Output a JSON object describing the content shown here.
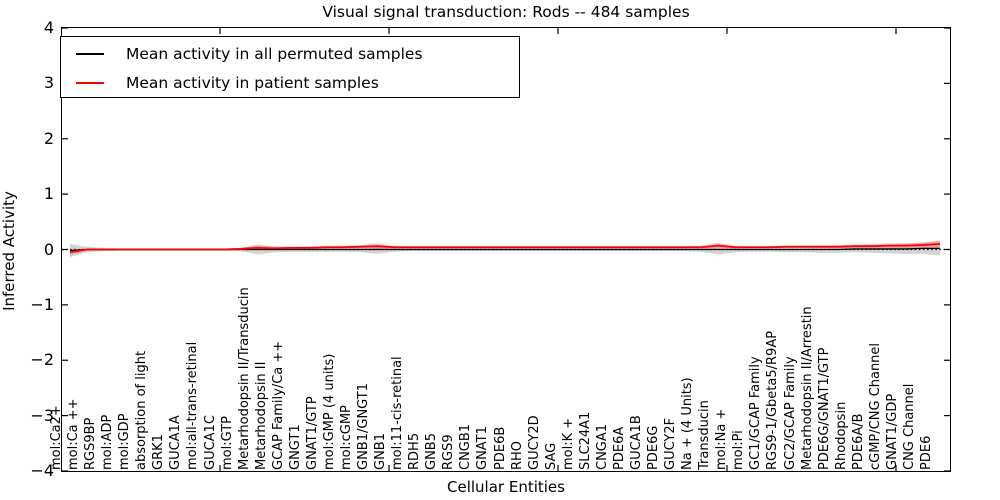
{
  "title": "Visual signal transduction: Rods -- 484 samples",
  "legend": {
    "items": [
      {
        "label": "Mean activity in all permuted samples",
        "color": "#000000"
      },
      {
        "label": "Mean activity in patient samples",
        "color": "#ff0000"
      }
    ]
  },
  "chart_data": {
    "type": "line",
    "title": "Visual signal transduction: Rods -- 484 samples",
    "xlabel": "Cellular Entities",
    "ylabel": "Inferred Activity",
    "ylim": [
      -4,
      4
    ],
    "yticks": [
      4,
      3,
      2,
      1,
      0,
      -1,
      -2,
      -3,
      -4
    ],
    "grid": false,
    "legend_position": "upper left",
    "zero_line": {
      "style": "dotted",
      "color": "#000000",
      "y": 0
    },
    "categories": [
      "mol:Ca2+",
      "mol:Ca ++",
      "RGS9BP",
      "mol:ADP",
      "mol:GDP",
      "absorption of light",
      "GRK1",
      "GUCA1A",
      "mol:all-trans-retinal",
      "GUCA1C",
      "mol:GTP",
      "Metarhodopsin II/Transducin",
      "Metarhodopsin II",
      "GCAP Family/Ca ++",
      "GNGT1",
      "GNAT1/GTP",
      "mol:GMP (4 units)",
      "mol:cGMP",
      "GNB1/GNGT1",
      "GNB1",
      "mol:11-cis-retinal",
      "RDH5",
      "GNB5",
      "RGS9",
      "CNGB1",
      "GNAT1",
      "PDE6B",
      "RHO",
      "GUCY2D",
      "SAG",
      "mol:K +",
      "SLC24A1",
      "CNGA1",
      "PDE6A",
      "GUCA1B",
      "PDE6G",
      "GUCY2F",
      "Na + (4 Units)",
      "Transducin",
      "mol:Na +",
      "mol:Pi",
      "GC1/GCAP Family",
      "RGS9-1/Gbeta5/R9AP",
      "GC2/GCAP Family",
      "Metarhodopsin II/Arrestin",
      "PDE6G/GNAT1/GTP",
      "Rhodopsin",
      "PDE6A/B",
      "cGMP/CNG Channel",
      "GNAT1/GDP",
      "CNG Channel",
      "PDE6"
    ],
    "series": [
      {
        "name": "Mean activity in all permuted samples",
        "color": "#000000",
        "values": [
          -0.02,
          0,
          0,
          0,
          0,
          0,
          0,
          0,
          0,
          0,
          0,
          0,
          0,
          0,
          0,
          0,
          0,
          0,
          0,
          0,
          0,
          0,
          0,
          0,
          0,
          0,
          0,
          0,
          0,
          0,
          0,
          0,
          0,
          0,
          0,
          0,
          0,
          0,
          0,
          0,
          0,
          0,
          0,
          0,
          0,
          0,
          0.01,
          0.01,
          0.01,
          0.01,
          0.02,
          0.02
        ]
      },
      {
        "name": "Mean activity in patient samples",
        "color": "#ff0000",
        "values": [
          -0.05,
          0,
          0,
          0,
          0,
          0,
          0,
          0,
          0,
          0,
          0.01,
          0.03,
          0.02,
          0.03,
          0.03,
          0.04,
          0.04,
          0.05,
          0.06,
          0.04,
          0.04,
          0.04,
          0.04,
          0.04,
          0.04,
          0.04,
          0.04,
          0.04,
          0.04,
          0.04,
          0.04,
          0.04,
          0.04,
          0.04,
          0.04,
          0.04,
          0.04,
          0.04,
          0.07,
          0.04,
          0.04,
          0.04,
          0.05,
          0.05,
          0.05,
          0.05,
          0.06,
          0.06,
          0.07,
          0.07,
          0.08,
          0.1
        ]
      }
    ],
    "bands": [
      {
        "name": "permuted-spread",
        "series_index": 0,
        "color": "#aaaaaa",
        "opacity": 0.5,
        "halfwidth": [
          0.12,
          0.05,
          0.03,
          0.02,
          0.02,
          0.02,
          0.02,
          0.02,
          0.02,
          0.02,
          0.03,
          0.09,
          0.05,
          0.04,
          0.04,
          0.04,
          0.04,
          0.05,
          0.08,
          0.04,
          0.03,
          0.03,
          0.03,
          0.03,
          0.03,
          0.03,
          0.03,
          0.03,
          0.03,
          0.03,
          0.03,
          0.03,
          0.03,
          0.03,
          0.03,
          0.03,
          0.03,
          0.04,
          0.09,
          0.05,
          0.04,
          0.04,
          0.05,
          0.05,
          0.06,
          0.06,
          0.06,
          0.07,
          0.08,
          0.09,
          0.1,
          0.13
        ]
      },
      {
        "name": "patient-spread",
        "series_index": 1,
        "color": "#ff3333",
        "opacity": 0.3,
        "halfwidth": [
          0.05,
          0.02,
          0.015,
          0.015,
          0.015,
          0.015,
          0.015,
          0.015,
          0.015,
          0.015,
          0.02,
          0.04,
          0.03,
          0.025,
          0.025,
          0.025,
          0.025,
          0.03,
          0.05,
          0.025,
          0.02,
          0.02,
          0.02,
          0.02,
          0.02,
          0.02,
          0.02,
          0.02,
          0.02,
          0.02,
          0.02,
          0.02,
          0.02,
          0.02,
          0.02,
          0.02,
          0.02,
          0.025,
          0.05,
          0.025,
          0.02,
          0.02,
          0.025,
          0.025,
          0.03,
          0.03,
          0.03,
          0.035,
          0.04,
          0.04,
          0.05,
          0.06
        ]
      }
    ]
  }
}
